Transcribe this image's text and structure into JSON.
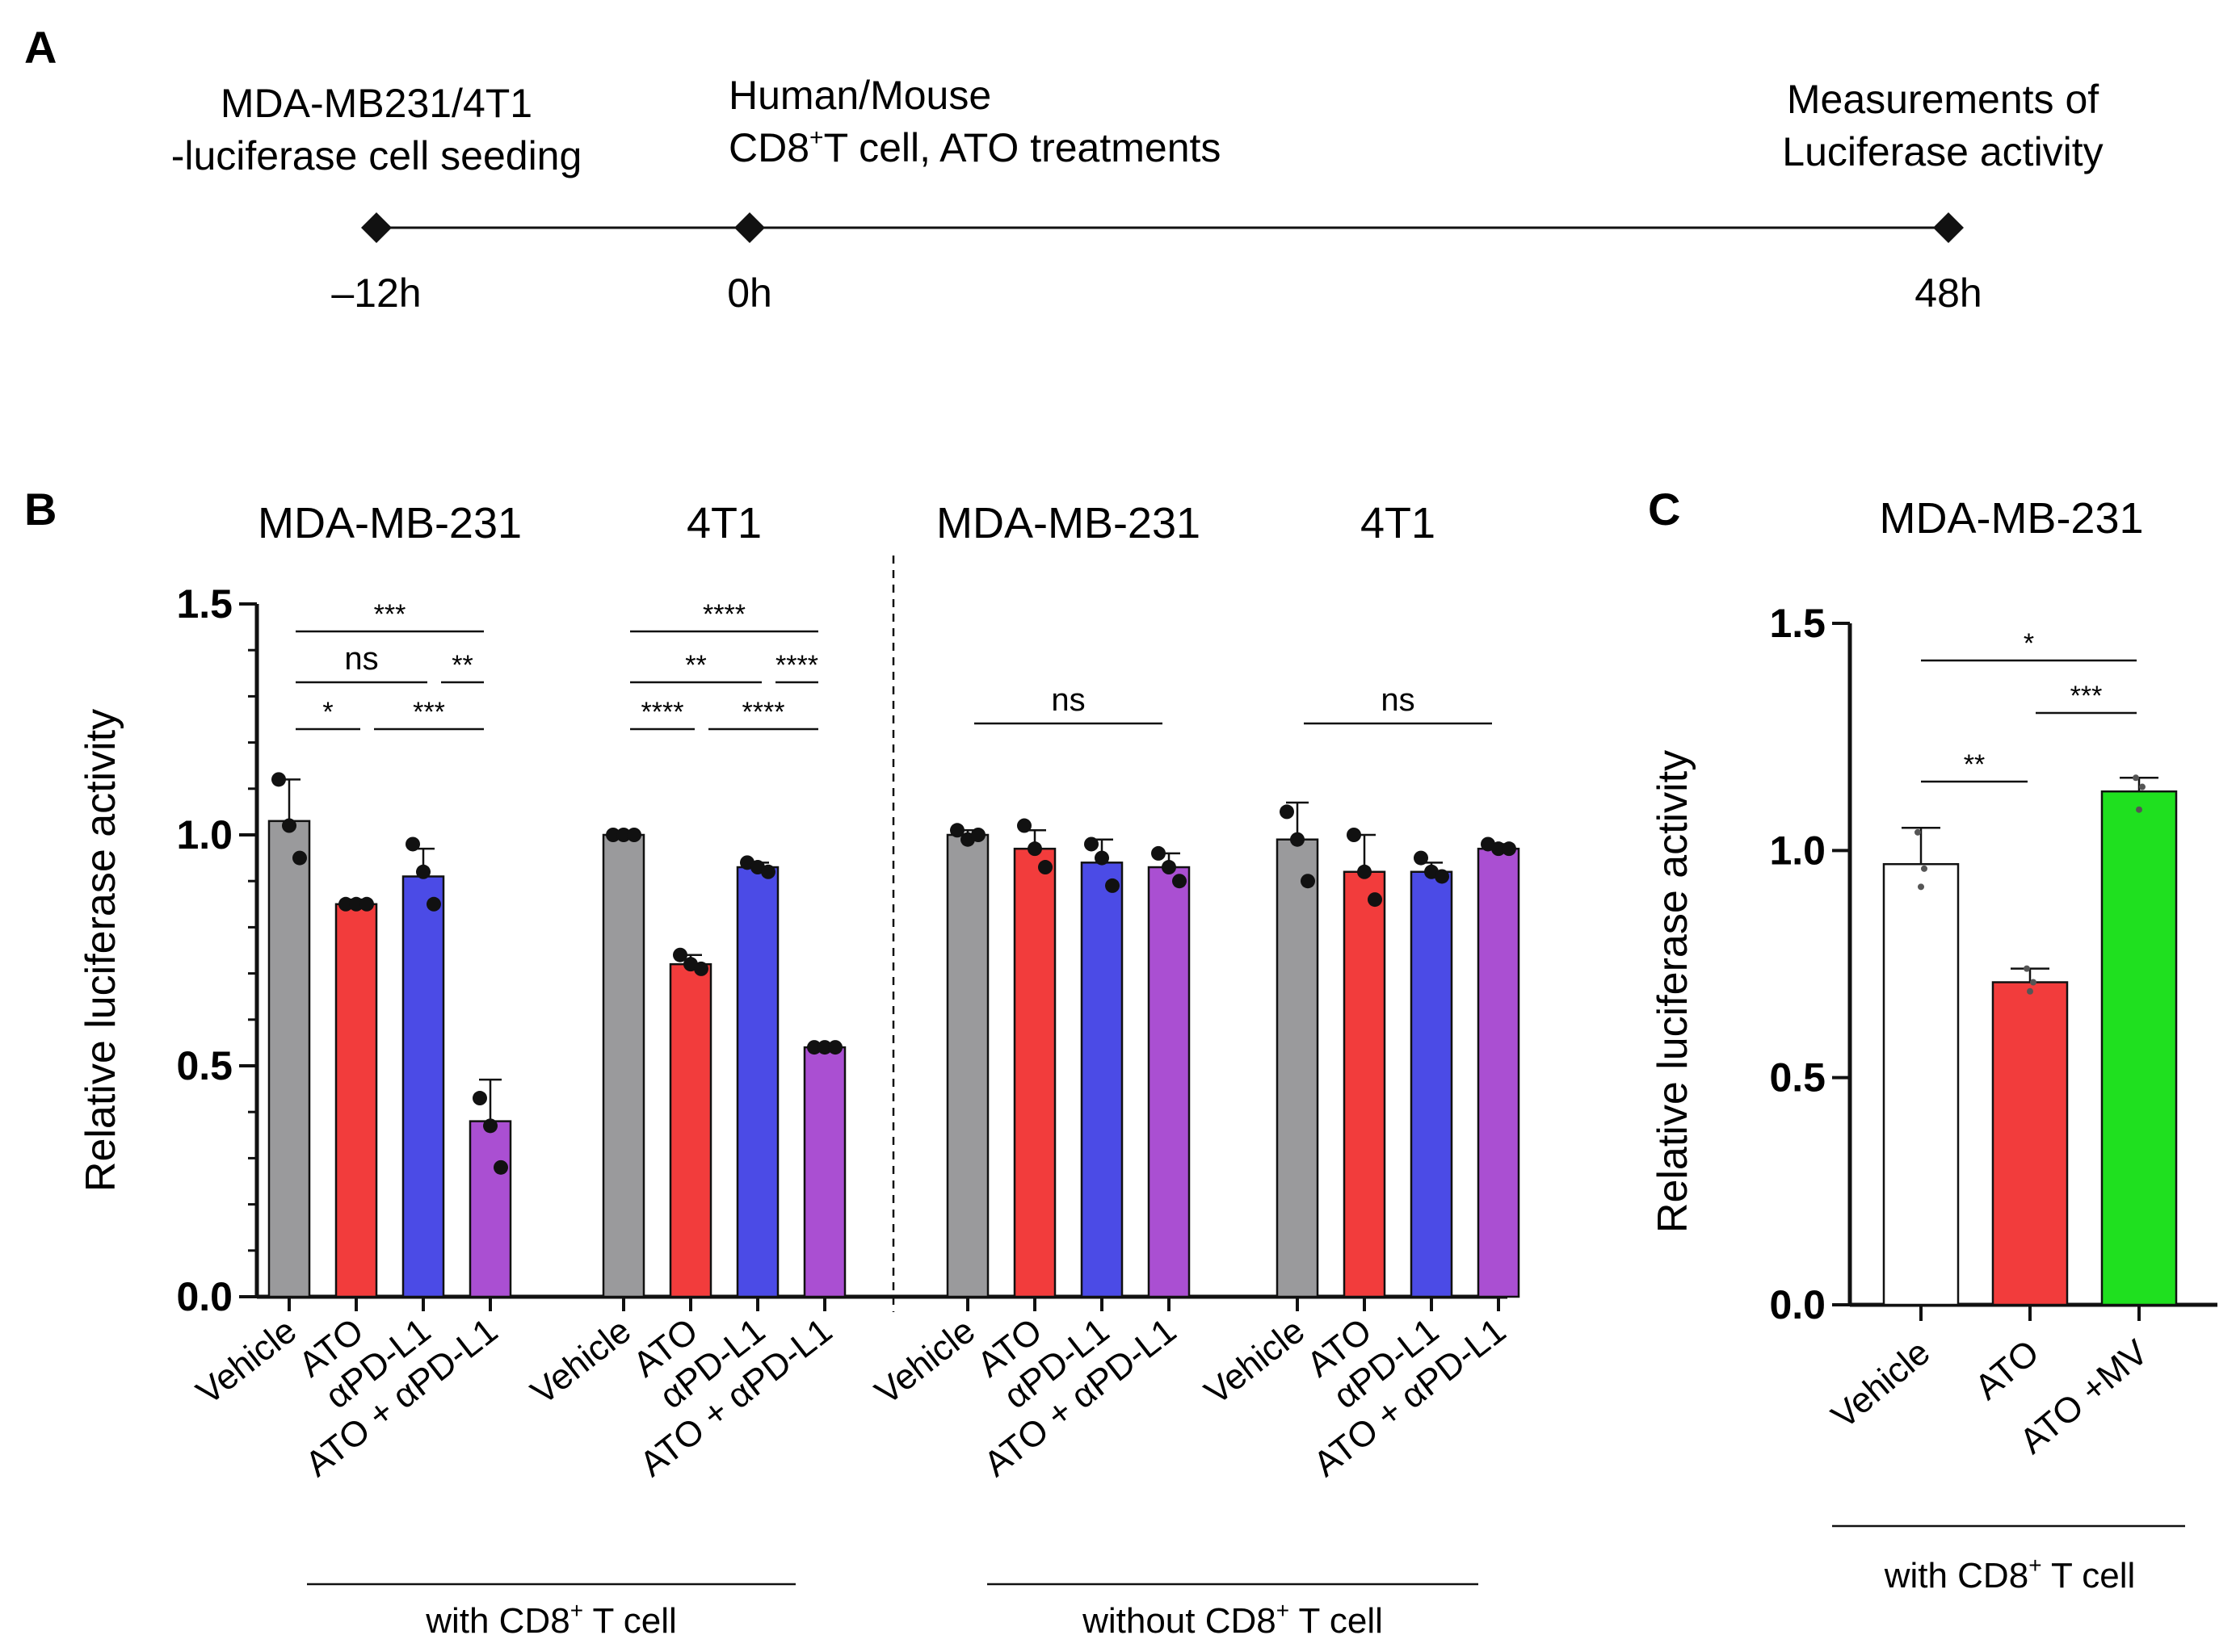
{
  "panels": {
    "a_label": "A",
    "b_label": "B",
    "c_label": "C"
  },
  "timeline": {
    "events": [
      {
        "line1": "MDA-MB231/4T1",
        "line2": "-luciferase cell seeding",
        "time": "–12h"
      },
      {
        "line1": "Human/Mouse",
        "line2_pre": "CD8",
        "line2_sup": "+",
        "line2_post": "T cell, ATO treatments",
        "time": "0h"
      },
      {
        "line1": "Measurements of",
        "line2": "Luciferase activity",
        "time": "48h"
      }
    ]
  },
  "chart_data": [
    {
      "id": "panel-B",
      "type": "bar",
      "ylabel": "Relative luciferase activity",
      "ylim": [
        0,
        1.5
      ],
      "yticks": [
        "0.0",
        "0.5",
        "1.0",
        "1.5"
      ],
      "categories": [
        "Vehicle",
        "ATO",
        "αPD-L1",
        "ATO + αPD-L1"
      ],
      "series_colors": [
        "#9a9a9c",
        "#f23c3c",
        "#4b4be6",
        "#aa4fd2"
      ],
      "groups": [
        {
          "title": "MDA-MB-231",
          "values": [
            1.03,
            0.85,
            0.91,
            0.38
          ],
          "errors": [
            0.09,
            0.01,
            0.06,
            0.09
          ],
          "points": [
            [
              1.12,
              1.02,
              0.95
            ],
            [
              0.85,
              0.85,
              0.85
            ],
            [
              0.98,
              0.92,
              0.85
            ],
            [
              0.43,
              0.37,
              0.28
            ]
          ],
          "significance": [
            {
              "label": "***",
              "from": 0,
              "to": 3
            },
            {
              "label": "ns",
              "from": 0,
              "to": 2
            },
            {
              "label": "**",
              "from": 2,
              "to": 3
            },
            {
              "label": "*",
              "from": 0,
              "to": 1
            },
            {
              "label": "***",
              "from": 1,
              "to": 3
            }
          ]
        },
        {
          "title": "4T1",
          "values": [
            1.0,
            0.72,
            0.93,
            0.54
          ],
          "errors": [
            0.0,
            0.02,
            0.01,
            0.0
          ],
          "points": [
            [
              1.0,
              1.0,
              1.0
            ],
            [
              0.74,
              0.72,
              0.71
            ],
            [
              0.94,
              0.93,
              0.92
            ],
            [
              0.54,
              0.54,
              0.54
            ]
          ],
          "significance": [
            {
              "label": "****",
              "from": 0,
              "to": 3
            },
            {
              "label": "**",
              "from": 0,
              "to": 2
            },
            {
              "label": "****",
              "from": 2,
              "to": 3
            },
            {
              "label": "****",
              "from": 0,
              "to": 1
            },
            {
              "label": "****",
              "from": 1,
              "to": 3
            }
          ]
        },
        {
          "title": "MDA-MB-231",
          "values": [
            1.0,
            0.97,
            0.94,
            0.93
          ],
          "errors": [
            0.01,
            0.04,
            0.05,
            0.03
          ],
          "points": [
            [
              1.01,
              0.99,
              1.0
            ],
            [
              1.02,
              0.97,
              0.93
            ],
            [
              0.98,
              0.95,
              0.89
            ],
            [
              0.96,
              0.93,
              0.9
            ]
          ],
          "significance": [
            {
              "label": "ns",
              "from": 0,
              "to": 3
            }
          ]
        },
        {
          "title": "4T1",
          "values": [
            0.99,
            0.92,
            0.92,
            0.97
          ],
          "errors": [
            0.08,
            0.08,
            0.02,
            0.01
          ],
          "points": [
            [
              1.05,
              0.99,
              0.9
            ],
            [
              1.0,
              0.92,
              0.86
            ],
            [
              0.95,
              0.92,
              0.91
            ],
            [
              0.98,
              0.97,
              0.97
            ]
          ],
          "significance": [
            {
              "label": "ns",
              "from": 0,
              "to": 3
            }
          ]
        }
      ],
      "conditions": [
        {
          "pre": "with CD8",
          "sup": "+",
          "post": " T cell"
        },
        {
          "pre": "without CD8",
          "sup": "+",
          "post": " T cell"
        }
      ]
    },
    {
      "id": "panel-C",
      "type": "bar",
      "title": "MDA-MB-231",
      "ylabel": "Relative luciferase activity",
      "ylim": [
        0,
        1.5
      ],
      "yticks": [
        "0.0",
        "0.5",
        "1.0",
        "1.5"
      ],
      "categories": [
        "Vehicle",
        "ATO",
        "ATO +MV"
      ],
      "colors": [
        "#ffffff",
        "#f23c3c",
        "#1fe01f"
      ],
      "values": [
        0.97,
        0.71,
        1.13
      ],
      "errors": [
        0.08,
        0.03,
        0.03
      ],
      "points": [
        [
          1.04,
          0.96,
          0.92
        ],
        [
          0.74,
          0.71,
          0.69
        ],
        [
          1.16,
          1.14,
          1.09
        ]
      ],
      "significance": [
        {
          "label": "*",
          "from": 0,
          "to": 2
        },
        {
          "label": "***",
          "from": 1,
          "to": 2
        },
        {
          "label": "**",
          "from": 0,
          "to": 1
        }
      ],
      "condition": {
        "pre": "with CD8",
        "sup": "+",
        "post": " T cell"
      }
    }
  ]
}
